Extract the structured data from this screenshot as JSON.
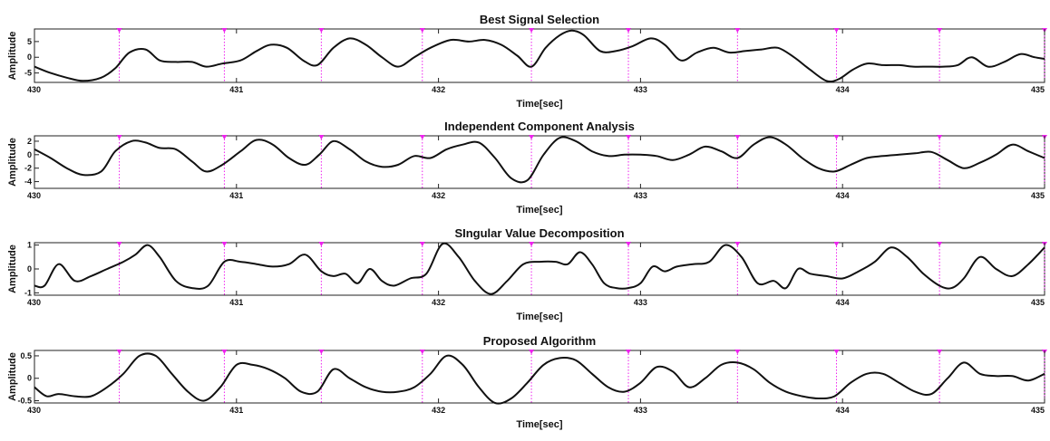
{
  "colors": {
    "signal": "#111111",
    "marker": "#ee22ee",
    "axis": "#222222"
  },
  "peak_markers_sec": [
    430.42,
    430.94,
    431.42,
    431.92,
    432.46,
    432.94,
    433.48,
    433.97,
    434.48,
    435.0
  ],
  "chart_data": [
    {
      "type": "line",
      "title": "Best Signal Selection",
      "xlabel": "Time[sec]",
      "ylabel": "Amplitude",
      "xlim": [
        430,
        435
      ],
      "ylim": [
        -8,
        9
      ],
      "xticks": [
        430,
        431,
        432,
        433,
        434,
        435
      ],
      "xtick_labels": [
        "430",
        "431",
        "432",
        "433",
        "434",
        "435"
      ],
      "yticks": [
        -5,
        0,
        5
      ],
      "ytick_labels": [
        "-5",
        "0",
        "5"
      ],
      "grid": false,
      "series": [
        {
          "x": [
            430.0,
            430.08,
            430.16,
            430.24,
            430.33,
            430.4,
            430.47,
            430.55,
            430.62,
            430.7,
            430.78,
            430.85,
            430.93,
            431.02,
            431.1,
            431.17,
            431.25,
            431.33,
            431.4,
            431.48,
            431.56,
            431.64,
            431.72,
            431.8,
            431.88,
            431.96,
            432.06,
            432.15,
            432.23,
            432.31,
            432.39,
            432.46,
            432.53,
            432.6,
            432.66,
            432.72,
            432.8,
            432.88,
            432.96,
            433.05,
            433.12,
            433.2,
            433.28,
            433.36,
            433.44,
            433.52,
            433.6,
            433.68,
            433.76,
            433.84,
            433.92,
            433.98,
            434.05,
            434.12,
            434.2,
            434.28,
            434.35,
            434.42,
            434.5,
            434.57,
            434.64,
            434.72,
            434.8,
            434.88,
            434.95,
            435.0
          ],
          "y": [
            -3,
            -5,
            -6.5,
            -7.5,
            -6.5,
            -3.5,
            1.5,
            2.5,
            -1,
            -1.5,
            -1.5,
            -3,
            -2,
            -1,
            2,
            4,
            3,
            -1,
            -2.5,
            3,
            6,
            4,
            0,
            -3,
            0,
            3,
            5.5,
            5,
            5.5,
            4,
            0.5,
            -3,
            3,
            7,
            8.5,
            7,
            2,
            2,
            3.5,
            6,
            4,
            -1,
            1.5,
            3,
            1.5,
            2,
            2.5,
            3,
            0,
            -4,
            -7.5,
            -7,
            -4,
            -2,
            -2.5,
            -2.5,
            -3,
            -3,
            -3,
            -2.5,
            0,
            -3,
            -1.5,
            1,
            0,
            -0.5
          ]
        }
      ]
    },
    {
      "type": "line",
      "title": "Independent Component Analysis",
      "xlabel": "Time[sec]",
      "ylabel": "Amplitude",
      "xlim": [
        430,
        435
      ],
      "ylim": [
        -5,
        2.8
      ],
      "xticks": [
        430,
        431,
        432,
        433,
        434,
        435
      ],
      "xtick_labels": [
        "430",
        "431",
        "432",
        "433",
        "434",
        "435"
      ],
      "yticks": [
        -4,
        -2,
        0,
        2
      ],
      "ytick_labels": [
        "-4",
        "-2",
        "0",
        "2"
      ],
      "grid": false,
      "series": [
        {
          "x": [
            430.0,
            430.08,
            430.16,
            430.24,
            430.33,
            430.4,
            430.48,
            430.55,
            430.62,
            430.7,
            430.78,
            430.85,
            430.93,
            431.02,
            431.1,
            431.18,
            431.26,
            431.34,
            431.41,
            431.48,
            431.56,
            431.64,
            431.72,
            431.8,
            431.88,
            431.96,
            432.04,
            432.12,
            432.2,
            432.28,
            432.36,
            432.44,
            432.52,
            432.6,
            432.68,
            432.76,
            432.84,
            432.92,
            433.0,
            433.08,
            433.16,
            433.24,
            433.32,
            433.4,
            433.48,
            433.56,
            433.64,
            433.72,
            433.8,
            433.88,
            433.96,
            434.04,
            434.12,
            434.2,
            434.28,
            434.36,
            434.44,
            434.52,
            434.6,
            434.68,
            434.76,
            434.84,
            434.92,
            435.0
          ],
          "y": [
            0.8,
            -0.5,
            -2,
            -3,
            -2.5,
            0.5,
            2,
            1.8,
            1,
            0.8,
            -1,
            -2.5,
            -1.5,
            0.5,
            2.2,
            1.5,
            -0.5,
            -1.5,
            0,
            2,
            0.8,
            -1,
            -1.8,
            -1.5,
            -0.2,
            -0.5,
            0.8,
            1.5,
            1.8,
            -0.5,
            -3.5,
            -3.8,
            0,
            2.5,
            2,
            0.5,
            -0.2,
            0,
            0,
            -0.2,
            -0.8,
            0,
            1.2,
            0.5,
            -0.5,
            1.5,
            2.6,
            1.5,
            -0.5,
            -2,
            -2.5,
            -1.5,
            -0.5,
            -0.2,
            0,
            0.2,
            0.4,
            -0.8,
            -2,
            -1.2,
            0,
            1.5,
            0.5,
            -0.5
          ]
        }
      ]
    },
    {
      "type": "line",
      "title": "SIngular Value Decomposition",
      "xlabel": "Time[sec]",
      "ylabel": "Amplitude",
      "xlim": [
        430,
        435
      ],
      "ylim": [
        -1.1,
        1.1
      ],
      "xticks": [
        430,
        431,
        432,
        433,
        434,
        435
      ],
      "xtick_labels": [
        "430",
        "431",
        "432",
        "433",
        "434",
        "435"
      ],
      "yticks": [
        -1,
        0,
        1
      ],
      "ytick_labels": [
        "-1",
        "0",
        "1"
      ],
      "grid": false,
      "series": [
        {
          "x": [
            430.0,
            430.05,
            430.12,
            430.2,
            430.28,
            430.36,
            430.44,
            430.5,
            430.56,
            430.62,
            430.7,
            430.78,
            430.86,
            430.94,
            431.02,
            431.1,
            431.18,
            431.26,
            431.34,
            431.42,
            431.48,
            431.54,
            431.6,
            431.66,
            431.72,
            431.78,
            431.86,
            431.94,
            432.02,
            432.1,
            432.18,
            432.26,
            432.34,
            432.42,
            432.5,
            432.58,
            432.64,
            432.7,
            432.76,
            432.82,
            432.88,
            432.94,
            433.0,
            433.06,
            433.12,
            433.18,
            433.26,
            433.34,
            433.42,
            433.5,
            433.58,
            433.66,
            433.72,
            433.78,
            433.84,
            433.92,
            434.0,
            434.08,
            434.16,
            434.24,
            434.32,
            434.4,
            434.48,
            434.54,
            434.6,
            434.68,
            434.76,
            434.84,
            434.92,
            435.0
          ],
          "y": [
            -0.7,
            -0.7,
            0.2,
            -0.5,
            -0.3,
            0,
            0.3,
            0.6,
            1,
            0.5,
            -0.5,
            -0.8,
            -0.7,
            0.3,
            0.3,
            0.2,
            0.1,
            0.2,
            0.6,
            -0.1,
            -0.3,
            -0.2,
            -0.6,
            0,
            -0.5,
            -0.7,
            -0.4,
            -0.2,
            1.05,
            0.5,
            -0.5,
            -1.05,
            -0.5,
            0.2,
            0.3,
            0.3,
            0.2,
            0.7,
            0.2,
            -0.6,
            -0.8,
            -0.8,
            -0.6,
            0.1,
            -0.1,
            0.1,
            0.2,
            0.3,
            1,
            0.5,
            -0.6,
            -0.5,
            -0.8,
            0,
            -0.2,
            -0.3,
            -0.4,
            -0.1,
            0.3,
            0.9,
            0.5,
            -0.2,
            -0.7,
            -0.8,
            -0.4,
            0.5,
            0,
            -0.3,
            0.2,
            0.9
          ]
        }
      ]
    },
    {
      "type": "line",
      "title": "Proposed Algorithm",
      "xlabel": "Time[sec]",
      "ylabel": "Amplitude",
      "xlim": [
        430,
        435
      ],
      "ylim": [
        -0.55,
        0.62
      ],
      "xticks": [
        430,
        431,
        432,
        433,
        434,
        435
      ],
      "xtick_labels": [
        "430",
        "431",
        "432",
        "433",
        "434",
        "435"
      ],
      "yticks": [
        -0.5,
        0,
        0.5
      ],
      "ytick_labels": [
        "-0.5",
        "0",
        "0.5"
      ],
      "grid": false,
      "series": [
        {
          "x": [
            430.0,
            430.06,
            430.12,
            430.2,
            430.28,
            430.36,
            430.44,
            430.52,
            430.6,
            430.68,
            430.76,
            430.84,
            430.92,
            431.0,
            431.08,
            431.16,
            431.24,
            431.32,
            431.4,
            431.48,
            431.56,
            431.64,
            431.72,
            431.8,
            431.88,
            431.96,
            432.04,
            432.12,
            432.2,
            432.28,
            432.36,
            432.44,
            432.52,
            432.6,
            432.68,
            432.76,
            432.84,
            432.92,
            433.0,
            433.08,
            433.16,
            433.24,
            433.32,
            433.4,
            433.48,
            433.56,
            433.64,
            433.72,
            433.8,
            433.88,
            433.96,
            434.04,
            434.12,
            434.2,
            434.28,
            434.36,
            434.44,
            434.52,
            434.6,
            434.68,
            434.76,
            434.84,
            434.92,
            435.0
          ],
          "y": [
            -0.2,
            -0.4,
            -0.35,
            -0.4,
            -0.4,
            -0.2,
            0.1,
            0.5,
            0.5,
            0.1,
            -0.3,
            -0.5,
            -0.2,
            0.3,
            0.3,
            0.2,
            0.0,
            -0.3,
            -0.3,
            0.2,
            0.0,
            -0.2,
            -0.3,
            -0.3,
            -0.2,
            0.1,
            0.5,
            0.3,
            -0.2,
            -0.55,
            -0.45,
            -0.1,
            0.3,
            0.45,
            0.4,
            0.1,
            -0.2,
            -0.3,
            -0.1,
            0.25,
            0.15,
            -0.2,
            0.0,
            0.3,
            0.35,
            0.2,
            -0.1,
            -0.3,
            -0.4,
            -0.45,
            -0.4,
            -0.1,
            0.1,
            0.1,
            -0.1,
            -0.3,
            -0.35,
            0.0,
            0.35,
            0.1,
            0.05,
            0.05,
            -0.05,
            0.1
          ]
        }
      ]
    }
  ]
}
